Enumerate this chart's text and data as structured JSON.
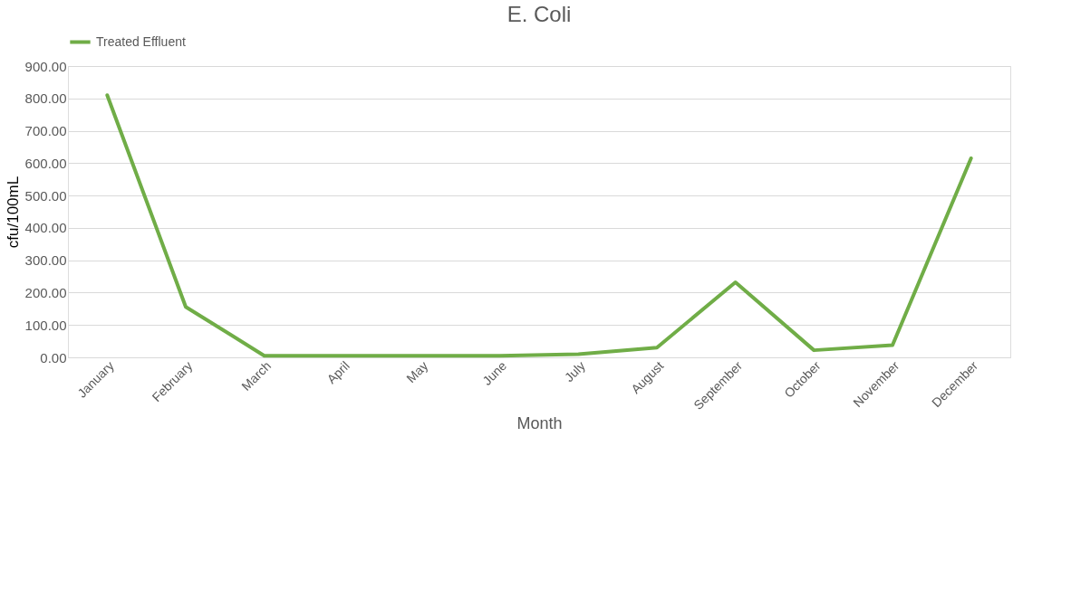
{
  "chart_data": {
    "type": "line",
    "title": "E. Coli",
    "xlabel": "Month",
    "ylabel": "cfu/100mL",
    "categories": [
      "January",
      "February",
      "March",
      "April",
      "May",
      "June",
      "July",
      "August",
      "September",
      "October",
      "November",
      "December"
    ],
    "series": [
      {
        "name": "Treated Effluent",
        "color": "#70ad47",
        "values": [
          810,
          156,
          5,
          5,
          5,
          5,
          10,
          30,
          232,
          22,
          38,
          615
        ]
      }
    ],
    "ylim": [
      0,
      900
    ],
    "yticks": [
      {
        "value": 0,
        "label": "0.00"
      },
      {
        "value": 100,
        "label": "100.00"
      },
      {
        "value": 200,
        "label": "200.00"
      },
      {
        "value": 300,
        "label": "300.00"
      },
      {
        "value": 400,
        "label": "400.00"
      },
      {
        "value": 500,
        "label": "500.00"
      },
      {
        "value": 600,
        "label": "600.00"
      },
      {
        "value": 700,
        "label": "700.00"
      },
      {
        "value": 800,
        "label": "800.00"
      },
      {
        "value": 900,
        "label": "900.00"
      }
    ],
    "grid": "y",
    "legend": "top",
    "marker": "none",
    "line_style": "solid"
  }
}
